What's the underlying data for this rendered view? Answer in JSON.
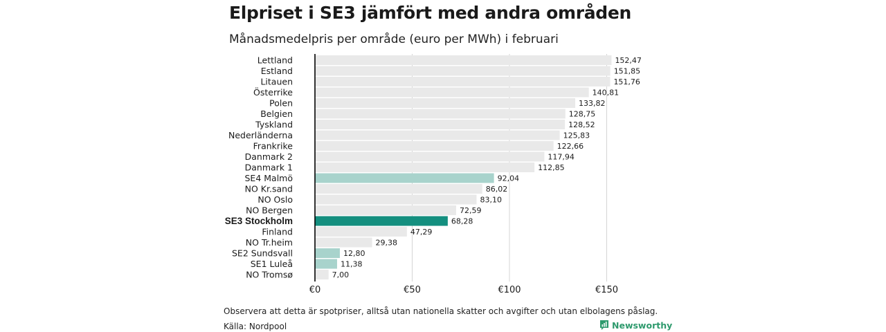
{
  "title": "Elpriset i SE3 jämfört med andra områden",
  "subtitle": "Månadsmedelpris per område (euro per MWh) i februari",
  "note": "Observera att detta är spotpriser, alltså utan nationella skatter och avgifter och utan elbolagens påslag.",
  "source": "Källa: Nordpool",
  "brand": {
    "name": "Newsworthy",
    "icon": "bar-chart-logo-icon",
    "color": "#2e9a6d"
  },
  "colors": {
    "default": "#e9e9e9",
    "se_region": "#a8d3cc",
    "highlight": "#148f7f",
    "grid": "#d4d4d4",
    "axis": "#000000"
  },
  "chart_data": {
    "type": "bar",
    "orientation": "horizontal",
    "categories": [
      "Lettland",
      "Estland",
      "Litauen",
      "Österrike",
      "Polen",
      "Belgien",
      "Tyskland",
      "Nederländerna",
      "Frankrike",
      "Danmark  2",
      "Danmark  1",
      "SE4  Malmö",
      "NO Kr.sand",
      "NO Oslo",
      "NO Bergen",
      "SE3 Stockholm",
      "Finland",
      "NO Tr.heim",
      "SE2  Sundsvall",
      "SE1  Luleå",
      "NO Tromsø"
    ],
    "values": [
      152.47,
      151.85,
      151.76,
      140.81,
      133.82,
      128.75,
      128.52,
      125.83,
      122.66,
      117.94,
      112.85,
      92.04,
      86.02,
      83.1,
      72.59,
      68.28,
      47.29,
      29.38,
      12.8,
      11.38,
      7.0
    ],
    "value_labels": [
      "152,47",
      "151,85",
      "151,76",
      "140,81",
      "133,82",
      "128,75",
      "128,52",
      "125,83",
      "122,66",
      "117,94",
      "112,85",
      "92,04",
      "86,02",
      "83,10",
      "72,59",
      "68,28",
      "47,29",
      "29,38",
      "12,80",
      "11,38",
      "7,00"
    ],
    "bar_style": [
      "default",
      "default",
      "default",
      "default",
      "default",
      "default",
      "default",
      "default",
      "default",
      "default",
      "default",
      "se_region",
      "default",
      "default",
      "default",
      "highlight",
      "default",
      "default",
      "se_region",
      "se_region",
      "default"
    ],
    "bold_categories": [
      "SE3 Stockholm"
    ],
    "xlim": [
      0,
      155
    ],
    "x_ticks": [
      0,
      50,
      100,
      150
    ],
    "x_tick_labels": [
      "€0",
      "€50",
      "€100",
      "€150"
    ],
    "grid": true
  }
}
